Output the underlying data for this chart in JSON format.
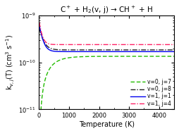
{
  "title": "C$^+$ + H$_2$(v, j) → CH$^+$ + H",
  "xlabel": "Temperature (K)",
  "ylabel": "k$_{v,j}$(T) (cm$^3$ s$^{-1}$)",
  "xlim": [
    0,
    4500
  ],
  "ylim": [
    1e-11,
    1e-09
  ],
  "curves": [
    {
      "label": "v=0, j=7",
      "color": "#22bb00",
      "linestyle": "--",
      "asym": 1.35e-10,
      "high": 1.35e-10,
      "barrier": 320,
      "shape": "activated"
    },
    {
      "label": "v=0, j=8",
      "color": "#222222",
      "linestyle": "-.",
      "asym": 1.85e-10,
      "high": 5.5e-10,
      "tau": 120,
      "shape": "decline"
    },
    {
      "label": "v=1, j=1",
      "color": "#0000ee",
      "linestyle": "-",
      "asym": 1.7e-10,
      "high": 6.5e-10,
      "tau": 100,
      "shape": "decline"
    },
    {
      "label": "v=1, j=4",
      "color": "#ff2266",
      "linestyle": "-.",
      "asym": 2.4e-10,
      "high": 7.5e-10,
      "tau": 80,
      "shape": "decline"
    }
  ],
  "background_color": "#ffffff",
  "legend_fontsize": 5.5,
  "title_fontsize": 7.5,
  "label_fontsize": 7,
  "tick_fontsize": 6
}
